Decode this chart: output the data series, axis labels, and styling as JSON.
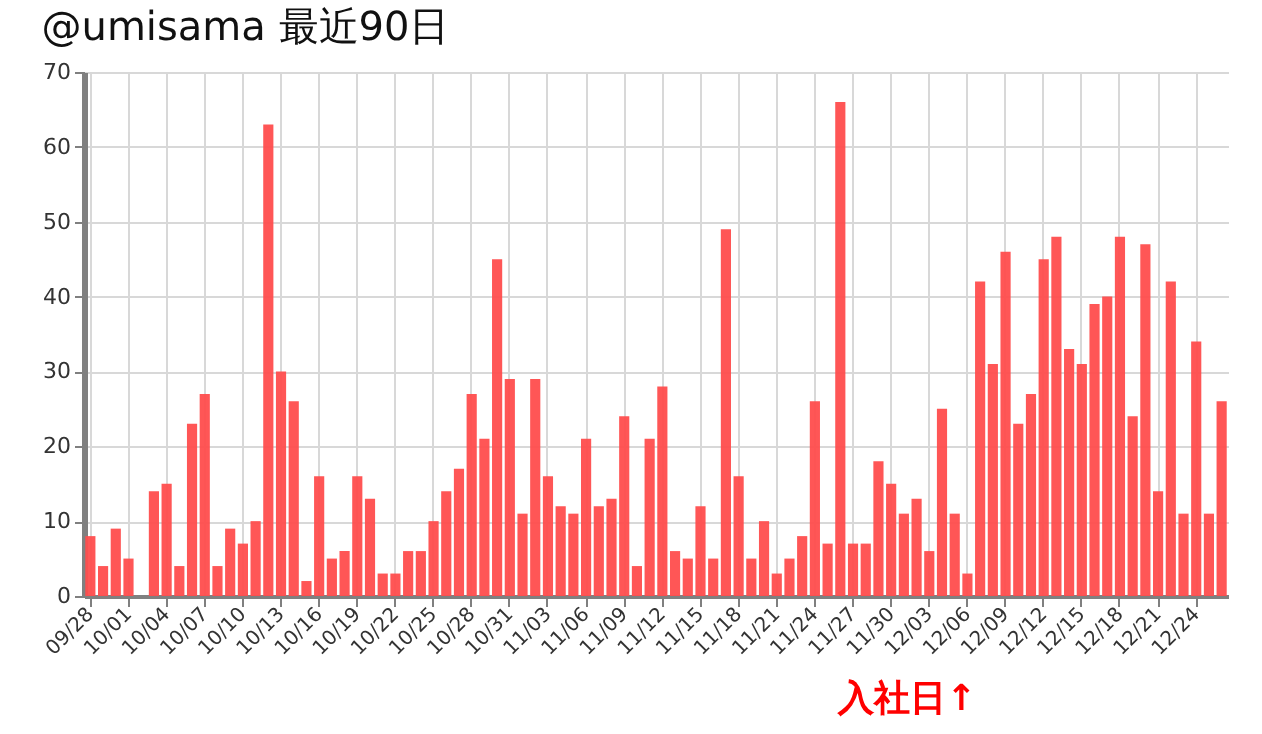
{
  "chart_data": {
    "type": "bar",
    "title": "@umisama 最近90日",
    "categories": [
      "09/28",
      null,
      null,
      "10/01",
      null,
      null,
      "10/04",
      null,
      null,
      "10/07",
      null,
      null,
      "10/10",
      null,
      null,
      "10/13",
      null,
      null,
      "10/16",
      null,
      null,
      "10/19",
      null,
      null,
      "10/22",
      null,
      null,
      "10/25",
      null,
      null,
      "10/28",
      null,
      null,
      "10/31",
      null,
      null,
      "11/03",
      null,
      null,
      "11/06",
      null,
      null,
      "11/09",
      null,
      null,
      "11/12",
      null,
      null,
      "11/15",
      null,
      null,
      "11/18",
      null,
      null,
      "11/21",
      null,
      null,
      "11/24",
      null,
      null,
      "11/27",
      null,
      null,
      "11/30",
      null,
      null,
      "12/03",
      null,
      null,
      "12/06",
      null,
      null,
      "12/09",
      null,
      null,
      "12/12",
      null,
      null,
      "12/15",
      null,
      null,
      "12/18",
      null,
      null,
      "12/21",
      null,
      null,
      "12/24",
      null,
      null
    ],
    "values": [
      8,
      4,
      9,
      5,
      0,
      14,
      15,
      4,
      23,
      27,
      4,
      9,
      7,
      10,
      63,
      30,
      26,
      2,
      16,
      5,
      6,
      16,
      13,
      3,
      3,
      6,
      6,
      10,
      14,
      17,
      27,
      21,
      45,
      29,
      11,
      29,
      16,
      12,
      11,
      21,
      12,
      13,
      24,
      4,
      21,
      28,
      6,
      5,
      12,
      5,
      49,
      16,
      5,
      10,
      3,
      5,
      8,
      26,
      7,
      66,
      7,
      7,
      18,
      15,
      11,
      13,
      6,
      25,
      11,
      3,
      42,
      31,
      46,
      23,
      27,
      45,
      48,
      33,
      31,
      39,
      40,
      48,
      24,
      47,
      14,
      42,
      11,
      34,
      11,
      26
    ],
    "color": "#ff4d4d",
    "ylim": [
      0,
      70
    ],
    "yticks": [
      0,
      10,
      20,
      30,
      40,
      50,
      60,
      70
    ],
    "grid": true,
    "annotations": [
      "入社日↑"
    ]
  }
}
